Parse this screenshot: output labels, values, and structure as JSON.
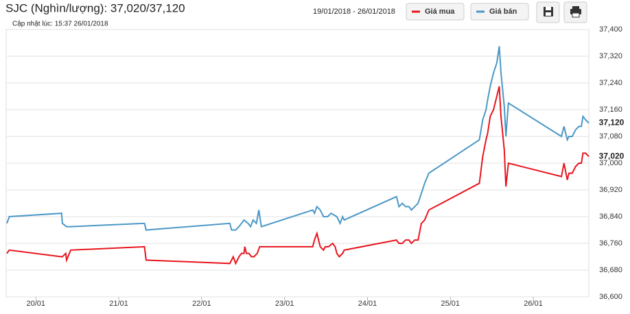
{
  "chart_data": {
    "type": "line",
    "title": "SJC (Nghìn/lượng): 37,020/37,120",
    "subtitle": "Cập nhật lúc: 15:37 26/01/2018",
    "date_range": "19/01/2018 - 26/01/2018",
    "grid": true,
    "xlim": [
      19.65,
      26.67
    ],
    "xticks": [
      {
        "value": 20,
        "label": "20/01"
      },
      {
        "value": 21,
        "label": "21/01"
      },
      {
        "value": 22,
        "label": "22/01"
      },
      {
        "value": 23,
        "label": "23/01"
      },
      {
        "value": 24,
        "label": "24/01"
      },
      {
        "value": 25,
        "label": "25/01"
      },
      {
        "value": 26,
        "label": "26/01"
      }
    ],
    "ylim": [
      36600,
      37400
    ],
    "yticks": [
      {
        "value": 36600,
        "label": "36,600"
      },
      {
        "value": 36680,
        "label": "36,680"
      },
      {
        "value": 36760,
        "label": "36,760"
      },
      {
        "value": 36840,
        "label": "36,840"
      },
      {
        "value": 36920,
        "label": "36,920"
      },
      {
        "value": 37000,
        "label": "37,000"
      },
      {
        "value": 37080,
        "label": "37,080"
      },
      {
        "value": 37160,
        "label": "37,160"
      },
      {
        "value": 37240,
        "label": "37,240"
      },
      {
        "value": 37320,
        "label": "37,320"
      },
      {
        "value": 37400,
        "label": "37,400"
      }
    ],
    "series": [
      {
        "name": "Giá mua",
        "color": "#e8141c",
        "current_label": "37,020",
        "x": [
          19.65,
          19.68,
          20.31,
          20.32,
          20.36,
          20.37,
          20.42,
          21.31,
          21.33,
          22.34,
          22.36,
          22.38,
          22.41,
          22.45,
          22.48,
          22.51,
          22.52,
          22.54,
          22.57,
          22.6,
          22.63,
          22.67,
          22.7,
          22.72,
          23.34,
          23.36,
          23.39,
          23.4,
          23.43,
          23.47,
          23.49,
          23.53,
          23.58,
          23.61,
          23.63,
          23.66,
          23.7,
          23.72,
          24.35,
          24.38,
          24.42,
          24.46,
          24.5,
          24.53,
          24.57,
          24.61,
          24.65,
          24.69,
          24.74,
          25.35,
          25.39,
          25.43,
          25.45,
          25.48,
          25.52,
          25.56,
          25.59,
          25.61,
          25.65,
          25.67,
          25.7,
          26.34,
          26.37,
          26.41,
          26.43,
          26.47,
          26.51,
          26.55,
          26.58,
          26.6,
          26.63,
          26.67
        ],
        "values": [
          36730,
          36740,
          36720,
          36720,
          36730,
          36710,
          36740,
          36750,
          36710,
          36700,
          36710,
          36720,
          36700,
          36720,
          36730,
          36730,
          36750,
          36730,
          36730,
          36720,
          36720,
          36730,
          36750,
          36750,
          36750,
          36770,
          36790,
          36780,
          36750,
          36740,
          36750,
          36750,
          36760,
          36750,
          36730,
          36720,
          36730,
          36740,
          36770,
          36760,
          36760,
          36770,
          36770,
          36760,
          36770,
          36770,
          36820,
          36830,
          36860,
          36940,
          37020,
          37070,
          37090,
          37140,
          37160,
          37200,
          37230,
          37140,
          37040,
          36930,
          37000,
          36960,
          37000,
          36950,
          36970,
          36970,
          36990,
          37000,
          37000,
          37030,
          37030,
          37020
        ]
      },
      {
        "name": "Giá bán",
        "color": "#4a97c6",
        "current_label": "37,120",
        "x": [
          19.65,
          19.68,
          20.31,
          20.32,
          20.37,
          20.41,
          20.42,
          21.31,
          21.33,
          22.34,
          22.36,
          22.41,
          22.45,
          22.48,
          22.51,
          22.56,
          22.59,
          22.62,
          22.66,
          22.69,
          22.72,
          23.34,
          23.36,
          23.39,
          23.43,
          23.47,
          23.52,
          23.56,
          23.63,
          23.67,
          23.7,
          23.72,
          24.35,
          24.38,
          24.42,
          24.46,
          24.5,
          24.53,
          24.57,
          24.61,
          24.65,
          24.69,
          24.74,
          25.35,
          25.39,
          25.43,
          25.45,
          25.48,
          25.52,
          25.56,
          25.59,
          25.61,
          25.65,
          25.67,
          25.7,
          26.34,
          26.37,
          26.41,
          26.43,
          26.47,
          26.51,
          26.55,
          26.58,
          26.6,
          26.63,
          26.67
        ],
        "values": [
          36820,
          36840,
          36850,
          36820,
          36810,
          36810,
          36810,
          36820,
          36800,
          36820,
          36800,
          36800,
          36810,
          36820,
          36830,
          36820,
          36810,
          36830,
          36820,
          36860,
          36810,
          36860,
          36850,
          36870,
          36860,
          36840,
          36840,
          36850,
          36840,
          36820,
          36840,
          36830,
          36900,
          36870,
          36880,
          36870,
          36870,
          36860,
          36870,
          36880,
          36910,
          36940,
          36970,
          37070,
          37130,
          37160,
          37190,
          37230,
          37270,
          37300,
          37350,
          37270,
          37170,
          37080,
          37180,
          37080,
          37110,
          37070,
          37080,
          37080,
          37100,
          37110,
          37110,
          37140,
          37130,
          37120
        ]
      }
    ]
  }
}
